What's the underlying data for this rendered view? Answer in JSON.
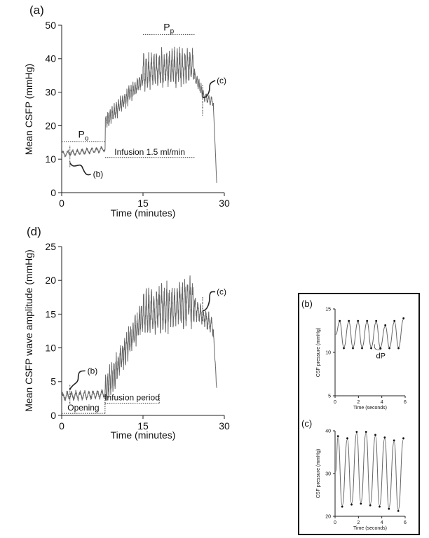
{
  "chart_data": [
    {
      "panel": "(a)",
      "type": "line",
      "ylabel": "Mean CSFP (mmHg)",
      "xlabel": "Time (minutes)",
      "xlim": [
        0,
        30
      ],
      "ylim": [
        0,
        50
      ],
      "xticks": [
        "0",
        "15",
        "30"
      ],
      "yticks": [
        "0",
        "10",
        "20",
        "30",
        "40",
        "50"
      ],
      "annotations": {
        "po_label": "P",
        "po_sub": "o",
        "pp_label": "P",
        "pp_sub": "p",
        "infusion": "Infusion 1.5 ml/min",
        "ref_b": "(b)",
        "ref_c": "(c)"
      },
      "regions": {
        "po": [
          0,
          8
        ],
        "pp": [
          15,
          24.5
        ],
        "infusion": [
          8,
          24.5
        ]
      },
      "marks": {
        "b": 1.5,
        "c": 26
      },
      "segments": [
        {
          "x0": 0,
          "x1": 8,
          "base0": 11.5,
          "base1": 13,
          "amp": 0.9,
          "spikes": 9
        },
        {
          "x0": 8,
          "x1": 8.05,
          "base0": 13,
          "base1": 20,
          "amp": 0,
          "spikes": 0
        },
        {
          "x0": 8.05,
          "x1": 15,
          "base0": 21,
          "base1": 34,
          "amp": 2.5,
          "spikes": 18
        },
        {
          "x0": 15,
          "x1": 24.5,
          "base0": 36,
          "base1": 38,
          "amp": 5.5,
          "spikes": 20
        },
        {
          "x0": 24.5,
          "x1": 26,
          "base0": 35,
          "base1": 30,
          "amp": 2,
          "spikes": 4
        },
        {
          "x0": 26,
          "x1": 28,
          "base0": 29,
          "base1": 27,
          "amp": 1.5,
          "spikes": 4
        },
        {
          "x0": 28,
          "x1": 28.6,
          "base0": 25,
          "base1": 3,
          "amp": 0.5,
          "spikes": 2
        }
      ]
    },
    {
      "panel": "(d)",
      "type": "line",
      "ylabel": "Mean CSFP wave amplitude (mmHg)",
      "xlabel": "Time (minutes)",
      "xlim": [
        0,
        30
      ],
      "ylim": [
        0,
        25
      ],
      "xticks": [
        "0",
        "15",
        "30"
      ],
      "yticks": [
        "0",
        "5",
        "10",
        "15",
        "20",
        "25"
      ],
      "annotations": {
        "opening": "Opening",
        "infusion": "Infusion period",
        "ref_b": "(b)",
        "ref_c": "(c)"
      },
      "regions": {
        "opening": [
          0,
          8
        ],
        "infusion": [
          8,
          18
        ]
      },
      "marks": {
        "b": 1.5,
        "c": 26
      },
      "segments": [
        {
          "x0": 0,
          "x1": 8,
          "base0": 2.8,
          "base1": 3.2,
          "amp": 0.7,
          "spikes": 10
        },
        {
          "x0": 8,
          "x1": 15,
          "base0": 3.5,
          "base1": 15,
          "amp": 2.3,
          "spikes": 18
        },
        {
          "x0": 15,
          "x1": 24.5,
          "base0": 15,
          "base1": 17,
          "amp": 3.5,
          "spikes": 20
        },
        {
          "x0": 24.5,
          "x1": 28,
          "base0": 16,
          "base1": 13,
          "amp": 1.5,
          "spikes": 7
        },
        {
          "x0": 28,
          "x1": 28.6,
          "base0": 12,
          "base1": 4,
          "amp": 0.5,
          "spikes": 2
        }
      ]
    },
    {
      "panel": "(b)",
      "type": "line",
      "ylabel": "CSF pressure (mmHg)",
      "xlabel": "Time (seconds)",
      "xlim": [
        0,
        6
      ],
      "ylim": [
        5,
        15
      ],
      "xticks": [
        "0",
        "2",
        "4",
        "6"
      ],
      "yticks": [
        "5",
        "10",
        "15"
      ],
      "annotations": {
        "dp": "dP"
      },
      "peaks": [
        13.5,
        13.5,
        13.5,
        13.5,
        13.5,
        13.0,
        13.5,
        13.8
      ],
      "troughs": [
        10.6,
        10.6,
        10.6,
        10.6,
        10.6,
        10.6,
        10.6
      ],
      "period": 0.78,
      "start": 0.4
    },
    {
      "panel": "(c)",
      "type": "line",
      "ylabel": "CSF pressure (mmHg)",
      "xlabel": "Time (seconds)",
      "xlim": [
        0,
        6
      ],
      "ylim": [
        20,
        40
      ],
      "xticks": [
        "0",
        "2",
        "4",
        "6"
      ],
      "yticks": [
        "20",
        "30",
        "40"
      ],
      "peaks": [
        38.5,
        38.0,
        39.5,
        39.5,
        38.8,
        38.2,
        37.5,
        38.0
      ],
      "troughs": [
        22.5,
        23.0,
        23.2,
        22.8,
        22.5,
        22.0,
        21.5
      ],
      "period": 0.8,
      "start": 0.25
    }
  ]
}
